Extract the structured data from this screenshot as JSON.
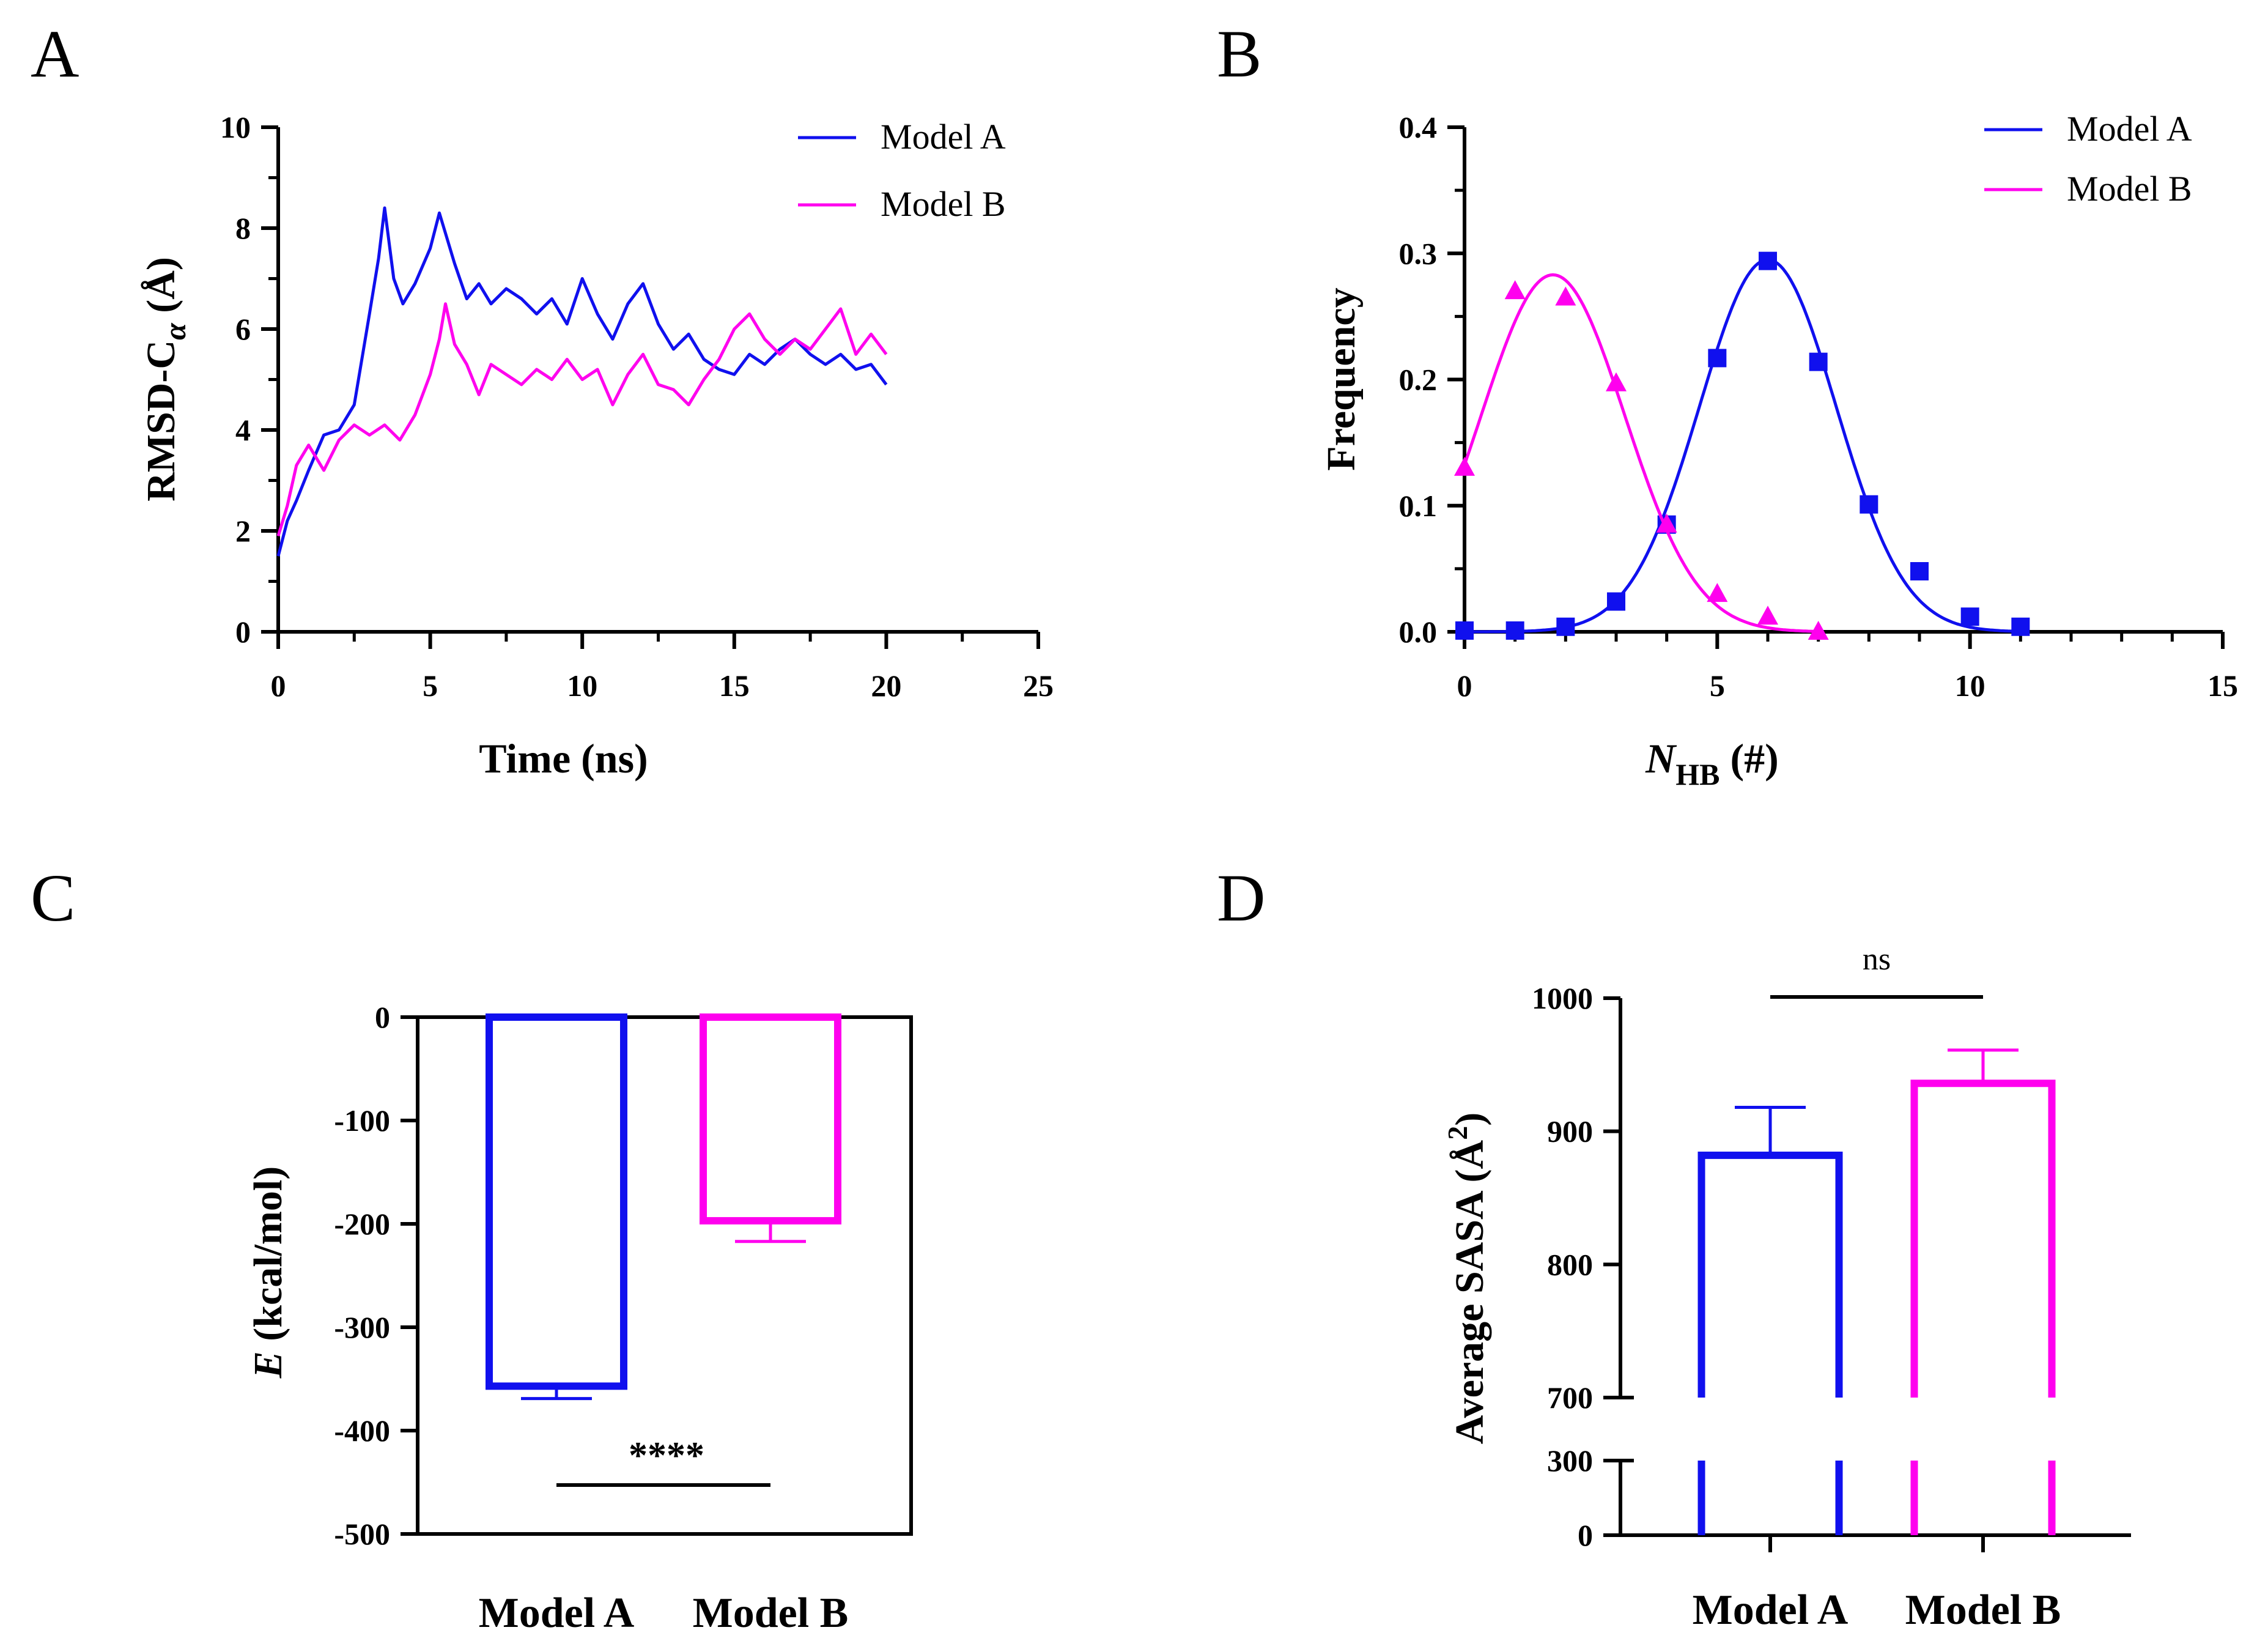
{
  "panels": {
    "A": {
      "letter": "A"
    },
    "B": {
      "letter": "B"
    },
    "C": {
      "letter": "C"
    },
    "D": {
      "letter": "D"
    }
  },
  "colors": {
    "model_a": "#1010ee",
    "model_b": "#ff00ee",
    "axis": "#000000"
  },
  "chart_data": [
    {
      "panel": "A",
      "type": "line",
      "xlabel": "Time (ns)",
      "ylabel_main": "RMSD-C",
      "ylabel_sub": "α",
      "ylabel_unit": " (Å)",
      "xlim": [
        0,
        25
      ],
      "ylim": [
        0,
        10
      ],
      "xticks": [
        0,
        5,
        10,
        15,
        20,
        25
      ],
      "yticks": [
        0,
        2,
        4,
        6,
        8,
        10
      ],
      "series": [
        {
          "name": "Model A",
          "color": "#1010ee",
          "x": [
            0,
            0.3,
            0.6,
            1.0,
            1.5,
            2.0,
            2.5,
            3.0,
            3.3,
            3.5,
            3.8,
            4.1,
            4.5,
            5.0,
            5.3,
            5.5,
            5.8,
            6.2,
            6.6,
            7.0,
            7.5,
            8.0,
            8.5,
            9.0,
            9.5,
            10.0,
            10.5,
            11.0,
            11.5,
            12.0,
            12.5,
            13.0,
            13.5,
            14.0,
            14.5,
            15.0,
            15.5,
            16.0,
            16.5,
            17.0,
            17.5,
            18.0,
            18.5,
            19.0,
            19.5,
            20.0
          ],
          "y": [
            1.5,
            2.2,
            2.6,
            3.2,
            3.9,
            4.0,
            4.5,
            6.3,
            7.4,
            8.4,
            7.0,
            6.5,
            6.9,
            7.6,
            8.3,
            7.9,
            7.3,
            6.6,
            6.9,
            6.5,
            6.8,
            6.6,
            6.3,
            6.6,
            6.1,
            7.0,
            6.3,
            5.8,
            6.5,
            6.9,
            6.1,
            5.6,
            5.9,
            5.4,
            5.2,
            5.1,
            5.5,
            5.3,
            5.6,
            5.8,
            5.5,
            5.3,
            5.5,
            5.2,
            5.3,
            4.9
          ]
        },
        {
          "name": "Model B",
          "color": "#ff00ee",
          "x": [
            0,
            0.3,
            0.6,
            1.0,
            1.5,
            2.0,
            2.5,
            3.0,
            3.5,
            4.0,
            4.5,
            5.0,
            5.3,
            5.5,
            5.8,
            6.2,
            6.6,
            7.0,
            7.5,
            8.0,
            8.5,
            9.0,
            9.5,
            10.0,
            10.5,
            11.0,
            11.5,
            12.0,
            12.5,
            13.0,
            13.5,
            14.0,
            14.5,
            15.0,
            15.5,
            16.0,
            16.5,
            17.0,
            17.5,
            18.0,
            18.5,
            19.0,
            19.5,
            20.0
          ],
          "y": [
            1.9,
            2.5,
            3.3,
            3.7,
            3.2,
            3.8,
            4.1,
            3.9,
            4.1,
            3.8,
            4.3,
            5.1,
            5.8,
            6.5,
            5.7,
            5.3,
            4.7,
            5.3,
            5.1,
            4.9,
            5.2,
            5.0,
            5.4,
            5.0,
            5.2,
            4.5,
            5.1,
            5.5,
            4.9,
            4.8,
            4.5,
            5.0,
            5.4,
            6.0,
            6.3,
            5.8,
            5.5,
            5.8,
            5.6,
            6.0,
            6.4,
            5.5,
            5.9,
            5.5
          ]
        }
      ]
    },
    {
      "panel": "B",
      "type": "scatter",
      "xlabel_main": "N",
      "xlabel_sub": "HB",
      "xlabel_unit": " (#)",
      "ylabel": "Frequency",
      "xlim": [
        0,
        15
      ],
      "ylim": [
        0,
        0.4
      ],
      "xticks": [
        0,
        5,
        10,
        15
      ],
      "yticks": [
        "0.0",
        "0.1",
        "0.2",
        "0.3",
        "0.4"
      ],
      "series": [
        {
          "name": "Model A",
          "color": "#1010ee",
          "marker": "square",
          "x": [
            0,
            1,
            2,
            3,
            4,
            5,
            6,
            7,
            8,
            9,
            10,
            11
          ],
          "y": [
            0.001,
            0.001,
            0.004,
            0.024,
            0.085,
            0.217,
            0.294,
            0.214,
            0.101,
            0.048,
            0.012,
            0.004
          ],
          "fit": {
            "amplitude": 0.295,
            "mean": 6.0,
            "sigma": 1.35
          }
        },
        {
          "name": "Model B",
          "color": "#ff00ee",
          "marker": "triangle",
          "x": [
            0,
            1,
            2,
            3,
            4,
            5,
            6,
            7
          ],
          "y": [
            0.13,
            0.27,
            0.265,
            0.197,
            0.085,
            0.03,
            0.012,
            0.0
          ],
          "fit": {
            "amplitude": 0.283,
            "mean": 1.75,
            "sigma": 1.42
          }
        }
      ]
    },
    {
      "panel": "C",
      "type": "bar",
      "ylabel_main": "E",
      "ylabel_unit": " (kcal/mol)",
      "categories": [
        "Model A",
        "Model B"
      ],
      "ylim": [
        -500,
        0
      ],
      "yticks": [
        0,
        -100,
        -200,
        -300,
        -400,
        -500
      ],
      "series": [
        {
          "name": "Model A",
          "color": "#1010ee",
          "value": -357,
          "error": 12
        },
        {
          "name": "Model B",
          "color": "#ff00ee",
          "value": -197,
          "error": 20
        }
      ],
      "significance": "****"
    },
    {
      "panel": "D",
      "type": "bar",
      "ylabel_main": "Average SASA (Å",
      "ylabel_sup": "2",
      "ylabel_unit": ")",
      "categories": [
        "Model A",
        "Model B"
      ],
      "ylim_upper": [
        700,
        1000
      ],
      "ylim_lower": [
        0,
        300
      ],
      "yticks_upper": [
        700,
        800,
        900,
        1000
      ],
      "yticks_lower": [
        0,
        300
      ],
      "series": [
        {
          "name": "Model A",
          "color": "#1010ee",
          "value": 882,
          "error": 36
        },
        {
          "name": "Model B",
          "color": "#ff00ee",
          "value": 936,
          "error": 25
        }
      ],
      "significance": "ns"
    }
  ]
}
